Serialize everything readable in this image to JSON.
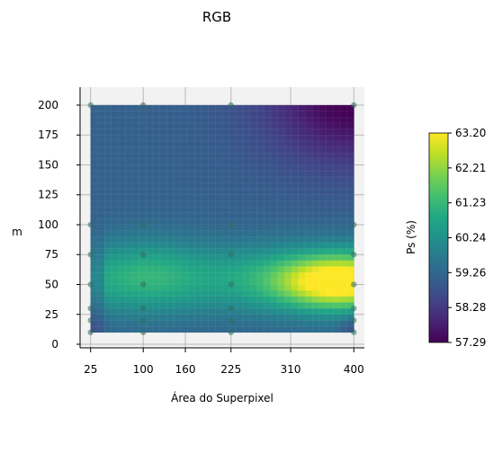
{
  "chart_data": {
    "type": "heatmap",
    "title": "RGB",
    "xlabel": "Área do Superpixel",
    "ylabel": "m",
    "x_ticks": [
      25,
      100,
      160,
      225,
      310,
      400
    ],
    "y_ticks": [
      0,
      25,
      50,
      75,
      100,
      125,
      150,
      175,
      200
    ],
    "xlim": [
      10,
      415
    ],
    "ylim": [
      -3,
      215
    ],
    "colorbar": {
      "label": "Ps (%)",
      "ticks": [
        "57.29",
        "58.28",
        "59.26",
        "60.24",
        "61.23",
        "62.21",
        "63.20"
      ],
      "min": 57.29,
      "max": 63.2,
      "colormap": "viridis"
    },
    "sample_points": [
      {
        "x": 25,
        "y": 200
      },
      {
        "x": 100,
        "y": 200
      },
      {
        "x": 225,
        "y": 200
      },
      {
        "x": 400,
        "y": 200
      },
      {
        "x": 25,
        "y": 100
      },
      {
        "x": 100,
        "y": 100
      },
      {
        "x": 225,
        "y": 100
      },
      {
        "x": 400,
        "y": 100
      },
      {
        "x": 25,
        "y": 75
      },
      {
        "x": 100,
        "y": 75
      },
      {
        "x": 225,
        "y": 75
      },
      {
        "x": 400,
        "y": 75
      },
      {
        "x": 25,
        "y": 50
      },
      {
        "x": 100,
        "y": 50
      },
      {
        "x": 225,
        "y": 50
      },
      {
        "x": 400,
        "y": 50
      },
      {
        "x": 25,
        "y": 30
      },
      {
        "x": 100,
        "y": 30
      },
      {
        "x": 225,
        "y": 30
      },
      {
        "x": 400,
        "y": 30
      },
      {
        "x": 25,
        "y": 20
      },
      {
        "x": 100,
        "y": 20
      },
      {
        "x": 225,
        "y": 20
      },
      {
        "x": 400,
        "y": 20
      },
      {
        "x": 25,
        "y": 10
      },
      {
        "x": 100,
        "y": 10
      },
      {
        "x": 225,
        "y": 10
      },
      {
        "x": 400,
        "y": 10
      }
    ],
    "surface_extent": {
      "x": [
        25,
        400
      ],
      "y": [
        10,
        200
      ]
    },
    "grid": true
  }
}
